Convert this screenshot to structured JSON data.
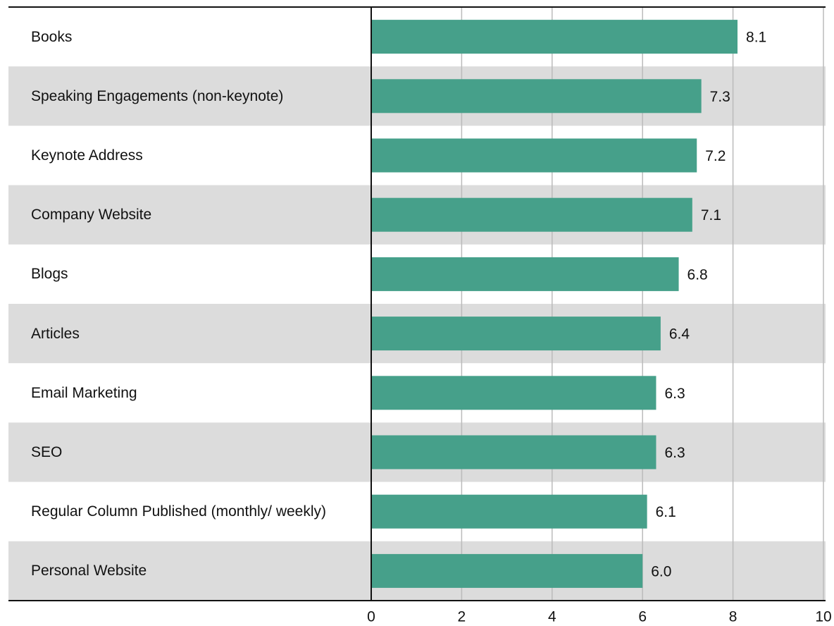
{
  "chart_data": {
    "type": "barh",
    "categories": [
      "Books",
      "Speaking Engagements (non-keynote)",
      "Keynote Address",
      "Company Website",
      "Blogs",
      "Articles",
      "Email Marketing",
      "SEO",
      "Regular Column Published (monthly/ weekly)",
      "Personal Website"
    ],
    "values": [
      8.1,
      7.3,
      7.2,
      7.1,
      6.8,
      6.4,
      6.3,
      6.3,
      6.1,
      6.0
    ],
    "value_labels": [
      "8.1",
      "7.3",
      "7.2",
      "7.1",
      "6.8",
      "6.4",
      "6.3",
      "6.3",
      "6.1",
      "6.0"
    ],
    "color": "#46a08a",
    "xlim": [
      0,
      10
    ],
    "xticks": [
      0,
      2,
      4,
      6,
      8,
      10
    ],
    "grid": true
  }
}
